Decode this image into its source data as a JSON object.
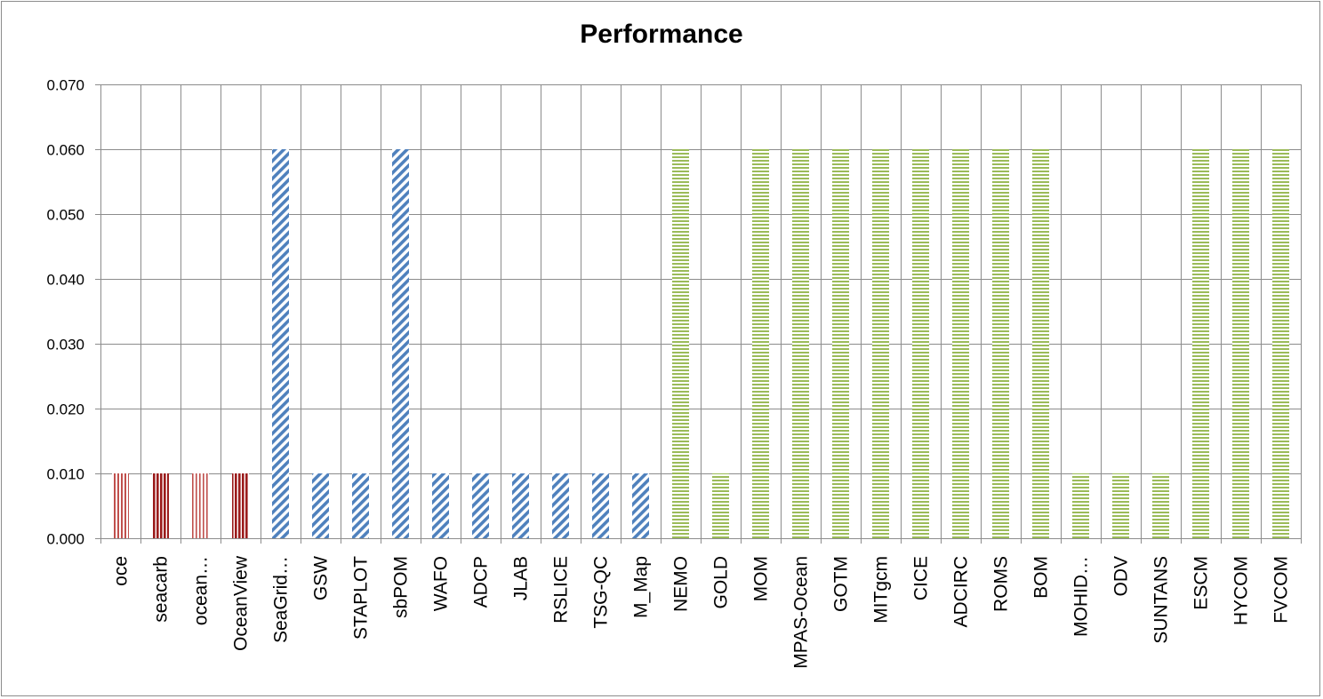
{
  "chart_data": {
    "type": "bar",
    "title": "Performance",
    "xlabel": "",
    "ylabel": "",
    "ylim": [
      0,
      0.07
    ],
    "yticks": [
      "0.000",
      "0.010",
      "0.020",
      "0.030",
      "0.040",
      "0.050",
      "0.060",
      "0.070"
    ],
    "grid": true,
    "legend": "none",
    "categories": [
      "oce",
      "seacarb",
      "ocean…",
      "OceanView",
      "SeaGrid…",
      "GSW",
      "STAPLOT",
      "sbPOM",
      "WAFO",
      "ADCP",
      "JLAB",
      "RSLICE",
      "TSG-QC",
      "M_Map",
      "NEMO",
      "GOLD",
      "MOM",
      "MPAS-Ocean",
      "GOTM",
      "MITgcm",
      "CICE",
      "ADCIRC",
      "ROMS",
      "BOM",
      "MOHID…",
      "ODV",
      "SUNTANS",
      "ESCM",
      "HYCOM",
      "FVCOM"
    ],
    "values": [
      0.01,
      0.01,
      0.01,
      0.01,
      0.06,
      0.01,
      0.01,
      0.06,
      0.01,
      0.01,
      0.01,
      0.01,
      0.01,
      0.01,
      0.06,
      0.01,
      0.06,
      0.06,
      0.06,
      0.06,
      0.06,
      0.06,
      0.06,
      0.06,
      0.01,
      0.01,
      0.01,
      0.06,
      0.06,
      0.06
    ],
    "bar_styles": [
      "v-red",
      "v-darkred",
      "v-pink",
      "v-darkred",
      "diag-blue",
      "diag-blue",
      "diag-blue",
      "diag-blue",
      "diag-blue",
      "diag-blue",
      "diag-blue",
      "diag-blue",
      "diag-blue",
      "diag-blue",
      "h-green",
      "h-green",
      "h-green",
      "h-green",
      "h-green",
      "h-green",
      "h-green",
      "h-green",
      "h-green",
      "h-green",
      "h-green",
      "h-green",
      "h-green",
      "h-green",
      "h-green",
      "h-green"
    ],
    "colors": {
      "v-red": "#c0504d",
      "v-darkred": "#9b1c1c",
      "v-pink": "#d99694",
      "diag-blue": "#4f81bd",
      "h-green": "#9bbb59",
      "grid": "#8c8c8c"
    }
  }
}
